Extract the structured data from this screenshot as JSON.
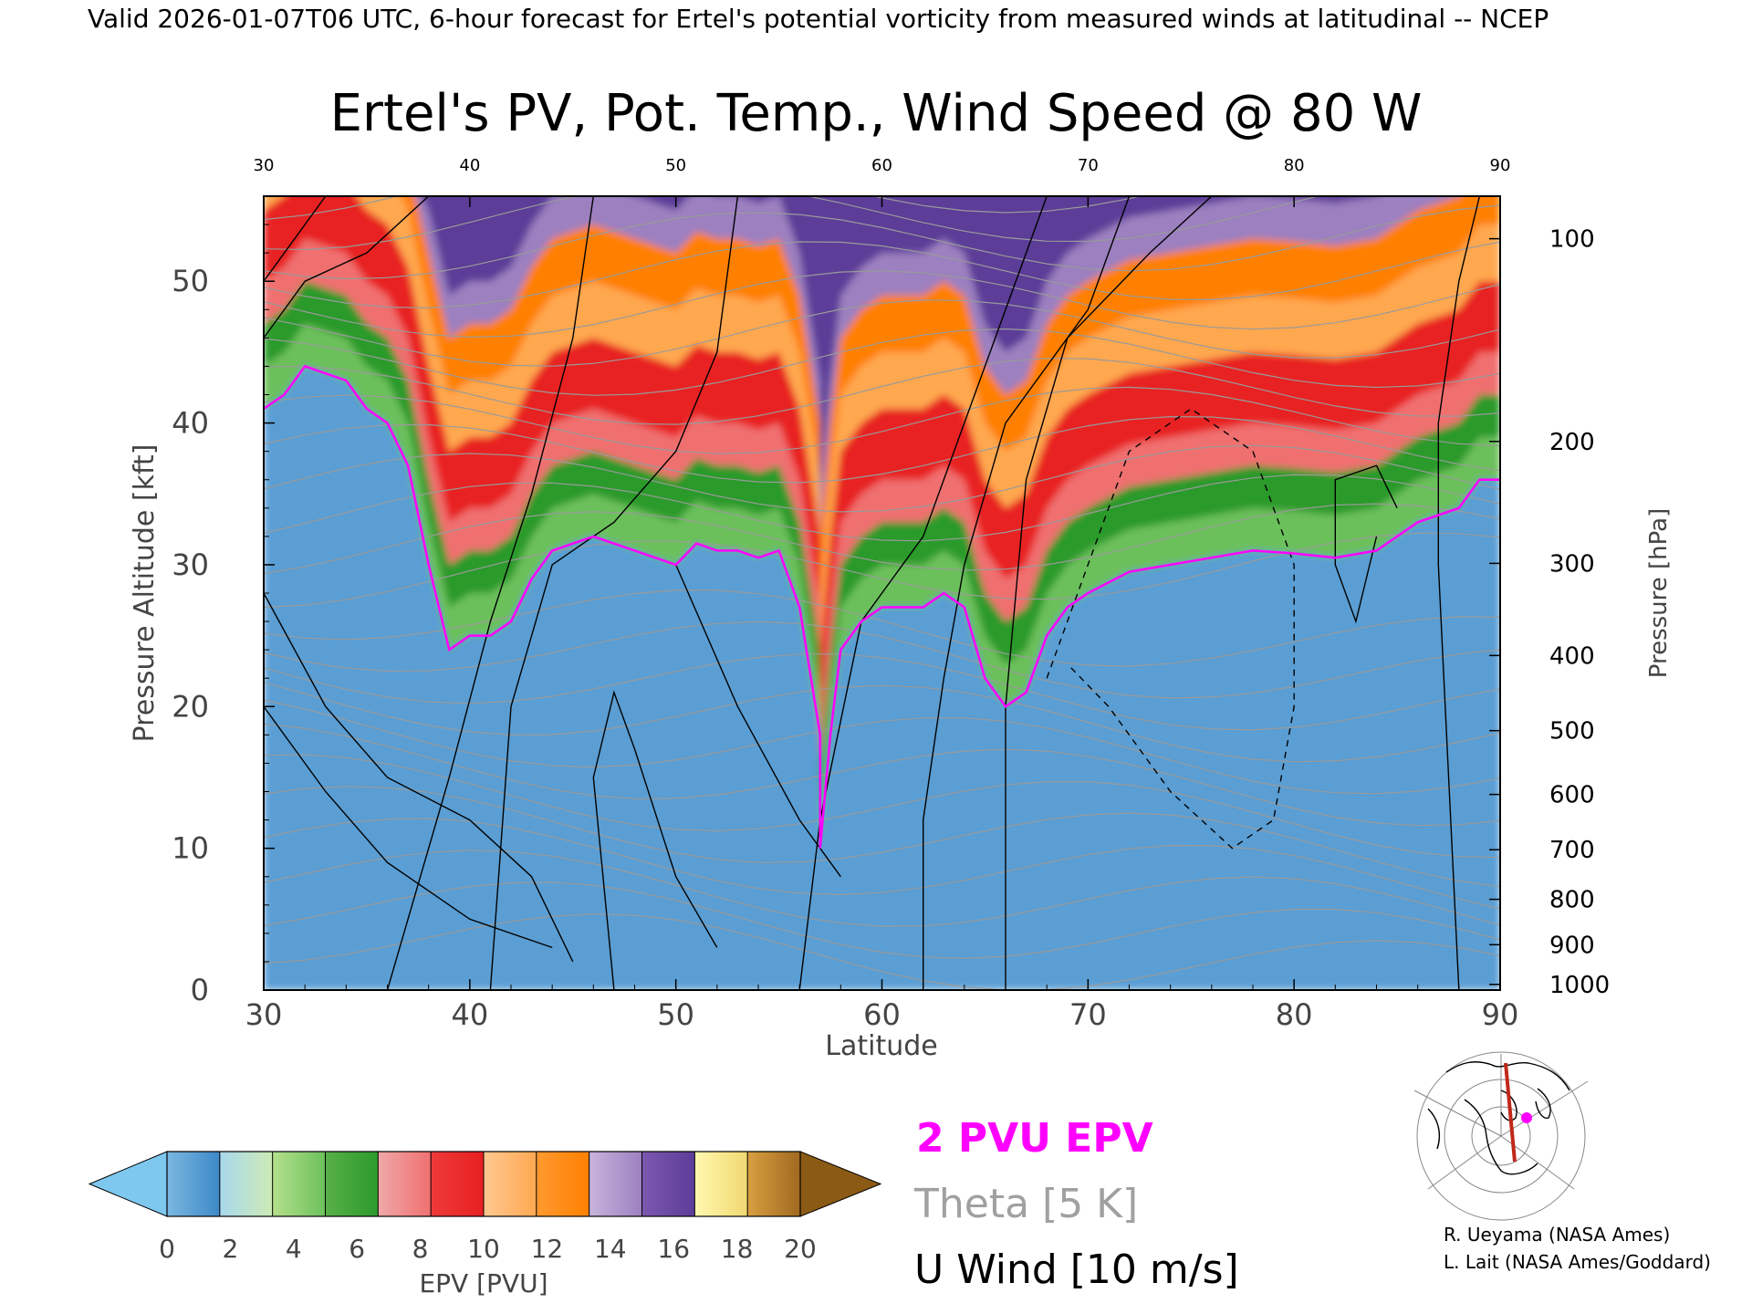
{
  "header": {
    "valid_line": "Valid 2026-01-07T06 UTC, 6-hour forecast for Ertel's potential vorticity from measured winds at latitudinal -- NCEP"
  },
  "credits": {
    "line1": "R. Ueyama (NASA Ames)",
    "line2": "L. Lait (NASA Ames/Goddard)"
  },
  "legend": {
    "pv_line": "2 PVU EPV",
    "theta_line": "Theta [5 K]",
    "wind_line": "U Wind [10 m/s]",
    "colors": {
      "pv": "#ff00ff",
      "theta": "#a0a0a0",
      "wind": "#000000"
    }
  },
  "colorbar": {
    "label": "EPV [PVU]",
    "ticks": [
      "0",
      "2",
      "4",
      "6",
      "8",
      "10",
      "12",
      "14",
      "16",
      "18",
      "20"
    ],
    "under_color": "#7ec8f0",
    "over_color": "#8b5a14",
    "bins": [
      [
        "#7ab8e0",
        "#3d88c8"
      ],
      [
        "#a8d8ee",
        "#cdebb4"
      ],
      [
        "#b4e08c",
        "#6cc05c"
      ],
      [
        "#58b048",
        "#2c9a2c"
      ],
      [
        "#f0a8a8",
        "#f07070"
      ],
      [
        "#ee3a3a",
        "#e82020"
      ],
      [
        "#ffc890",
        "#ffa850"
      ],
      [
        "#ff9a30",
        "#ff8000"
      ],
      [
        "#c8b4dc",
        "#9c80c0"
      ],
      [
        "#7c58b0",
        "#5c3c98"
      ],
      [
        "#fff8b0",
        "#f0d870"
      ],
      [
        "#d8a040",
        "#a06820"
      ]
    ]
  },
  "chart_data": {
    "type": "heatmap",
    "title": "Ertel's PV, Pot. Temp., Wind Speed @ 80 W",
    "xlabel": "Latitude",
    "ylabel_left": "Pressure Altitude [kft]",
    "ylabel_right": "Pressure [hPa]",
    "xlim": [
      30,
      90
    ],
    "ylim": [
      0,
      56
    ],
    "x_ticks": [
      30,
      40,
      50,
      60,
      70,
      80,
      90
    ],
    "y_ticks": [
      0,
      10,
      20,
      30,
      40,
      50
    ],
    "pressure_ticks": [
      {
        "hPa": 100,
        "kft": 53.0
      },
      {
        "hPa": 200,
        "kft": 38.7
      },
      {
        "hPa": 300,
        "kft": 30.1
      },
      {
        "hPa": 400,
        "kft": 23.6
      },
      {
        "hPa": 500,
        "kft": 18.3
      },
      {
        "hPa": 600,
        "kft": 13.8
      },
      {
        "hPa": 700,
        "kft": 9.9
      },
      {
        "hPa": 800,
        "kft": 6.4
      },
      {
        "hPa": 900,
        "kft": 3.2
      },
      {
        "hPa": 1000,
        "kft": 0.4
      }
    ],
    "epv_colorbar_range": [
      0,
      20
    ],
    "two_pvu_contour": [
      [
        30,
        41
      ],
      [
        31,
        42
      ],
      [
        32,
        44
      ],
      [
        34,
        43
      ],
      [
        35,
        41
      ],
      [
        36,
        40
      ],
      [
        37,
        37
      ],
      [
        38,
        30
      ],
      [
        39,
        24
      ],
      [
        40,
        25
      ],
      [
        41,
        25
      ],
      [
        42,
        26
      ],
      [
        43,
        29
      ],
      [
        44,
        31
      ],
      [
        46,
        32
      ],
      [
        48,
        31
      ],
      [
        50,
        30
      ],
      [
        51,
        31.5
      ],
      [
        52,
        31
      ],
      [
        53,
        31
      ],
      [
        54,
        30.5
      ],
      [
        55,
        31
      ],
      [
        56,
        27
      ],
      [
        57,
        18
      ],
      [
        57,
        10
      ],
      [
        57.5,
        18
      ],
      [
        58,
        24
      ],
      [
        59,
        26
      ],
      [
        60,
        27
      ],
      [
        62,
        27
      ],
      [
        63,
        28
      ],
      [
        64,
        27
      ],
      [
        65,
        22
      ],
      [
        66,
        20
      ],
      [
        67,
        21
      ],
      [
        68,
        25
      ],
      [
        69,
        27
      ],
      [
        70,
        28
      ],
      [
        72,
        29.5
      ],
      [
        74,
        30
      ],
      [
        76,
        30.5
      ],
      [
        78,
        31
      ],
      [
        80,
        30.8
      ],
      [
        82,
        30.5
      ],
      [
        84,
        31
      ],
      [
        86,
        33
      ],
      [
        88,
        34
      ],
      [
        89,
        36
      ],
      [
        90,
        36
      ]
    ],
    "u_wind_contour_levels_m_s": [
      -10,
      0,
      10,
      30,
      50
    ],
    "theta_interval_K": 5
  }
}
